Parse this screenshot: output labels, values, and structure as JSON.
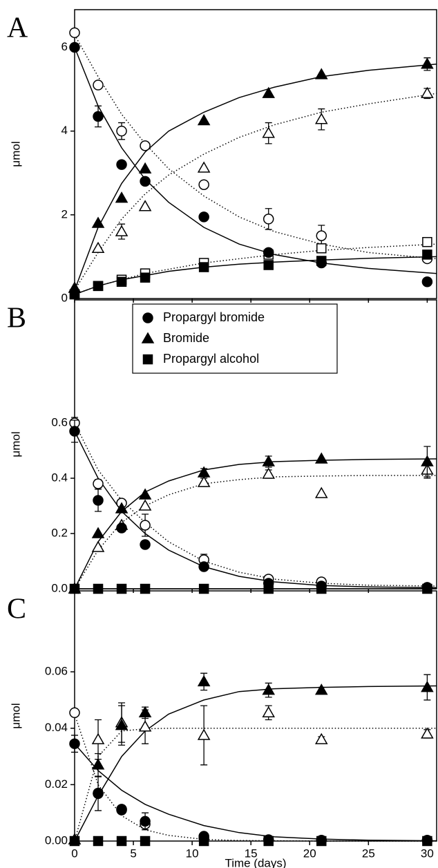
{
  "chart_data": [
    {
      "type": "scatter",
      "panel_label": "A",
      "ylabel": "μmol",
      "x": [
        0,
        2,
        4,
        6,
        11,
        16.5,
        21,
        30
      ],
      "xlim": [
        0,
        30.8
      ],
      "xticks": [
        0,
        5,
        10,
        15,
        20,
        25,
        30
      ],
      "ylim": [
        0,
        6.9
      ],
      "yticks": [
        0,
        2,
        4,
        6
      ],
      "series": [
        {
          "marker": "circle",
          "fill": "filled",
          "color": "#000000",
          "values": [
            6.0,
            4.35,
            3.2,
            2.8,
            1.95,
            1.1,
            0.85,
            0.4
          ],
          "errors": [
            null,
            0.25,
            null,
            null,
            null,
            null,
            null,
            null
          ]
        },
        {
          "marker": "triangle",
          "fill": "filled",
          "color": "#000000",
          "values": [
            0.25,
            1.8,
            2.4,
            3.1,
            4.25,
            4.9,
            5.35,
            5.6
          ],
          "errors": [
            null,
            null,
            null,
            null,
            null,
            null,
            null,
            0.15
          ]
        },
        {
          "marker": "square",
          "fill": "filled",
          "color": "#000000",
          "values": [
            0.1,
            0.3,
            0.4,
            0.5,
            0.75,
            0.8,
            0.9,
            1.05
          ],
          "errors": [
            null,
            null,
            null,
            null,
            null,
            null,
            null,
            null
          ]
        },
        {
          "marker": "circle",
          "fill": "open",
          "color": "#000000",
          "values": [
            6.35,
            5.1,
            4.0,
            3.65,
            2.72,
            1.9,
            1.5,
            0.95
          ],
          "errors": [
            null,
            null,
            0.2,
            null,
            null,
            0.25,
            0.25,
            null
          ]
        },
        {
          "marker": "triangle",
          "fill": "open",
          "color": "#000000",
          "values": [
            0.25,
            1.2,
            1.6,
            2.2,
            3.12,
            3.95,
            4.28,
            4.9
          ],
          "errors": [
            null,
            null,
            0.18,
            null,
            null,
            0.25,
            0.25,
            0.12
          ]
        },
        {
          "marker": "square",
          "fill": "open",
          "color": "#000000",
          "values": [
            0.1,
            0.3,
            0.45,
            0.6,
            0.85,
            1.05,
            1.2,
            1.35
          ],
          "errors": [
            null,
            null,
            null,
            null,
            null,
            null,
            null,
            null
          ]
        }
      ],
      "fit_x": [
        0,
        2,
        4,
        6,
        8,
        11,
        14,
        17,
        21,
        25,
        30.8
      ],
      "fits": [
        {
          "dash": "solid",
          "values": [
            6.0,
            4.6,
            3.6,
            2.85,
            2.3,
            1.7,
            1.3,
            1.05,
            0.85,
            0.72,
            0.6
          ]
        },
        {
          "dash": "solid",
          "values": [
            0.2,
            1.7,
            2.75,
            3.5,
            4.0,
            4.45,
            4.8,
            5.05,
            5.3,
            5.45,
            5.6
          ]
        },
        {
          "dash": "solid",
          "values": [
            0.1,
            0.3,
            0.45,
            0.55,
            0.65,
            0.75,
            0.82,
            0.87,
            0.92,
            0.96,
            1.0
          ]
        },
        {
          "dash": "dotted",
          "values": [
            6.3,
            5.3,
            4.4,
            3.7,
            3.1,
            2.45,
            1.95,
            1.6,
            1.3,
            1.1,
            0.95
          ]
        },
        {
          "dash": "dotted",
          "values": [
            0.2,
            1.1,
            1.9,
            2.5,
            2.95,
            3.45,
            3.85,
            4.15,
            4.45,
            4.65,
            4.9
          ]
        },
        {
          "dash": "dotted",
          "values": [
            0.1,
            0.3,
            0.45,
            0.6,
            0.7,
            0.85,
            0.95,
            1.05,
            1.15,
            1.22,
            1.3
          ]
        }
      ]
    },
    {
      "type": "scatter",
      "panel_label": "B",
      "ylabel": "μmol",
      "x": [
        0,
        2,
        4,
        6,
        11,
        16.5,
        21,
        30
      ],
      "xlim": [
        0,
        30.8
      ],
      "xticks": [
        0,
        5,
        10,
        15,
        20,
        25,
        30
      ],
      "ylim": [
        0,
        1.045
      ],
      "yticks": [
        {
          "value": 0,
          "label": "0.0"
        },
        0.2,
        0.4,
        0.6
      ],
      "legend": "upper center",
      "series": [
        {
          "name": "Propargyl bromide",
          "marker": "circle",
          "fill": "filled",
          "color": "#000000",
          "values": [
            0.57,
            0.32,
            0.22,
            0.16,
            0.08,
            0.02,
            0.01,
            0.005
          ],
          "errors": [
            0.04,
            0.04,
            null,
            null,
            null,
            null,
            null,
            null
          ]
        },
        {
          "name": "Bromide",
          "marker": "triangle",
          "fill": "filled",
          "color": "#000000",
          "values": [
            0.0,
            0.2,
            0.29,
            0.34,
            0.42,
            0.46,
            0.47,
            0.46
          ],
          "errors": [
            null,
            null,
            null,
            null,
            0.015,
            0.02,
            null,
            0.055
          ]
        },
        {
          "name": "Propargyl alcohol",
          "marker": "square",
          "fill": "filled",
          "color": "#000000",
          "values": [
            0,
            0,
            0,
            0,
            0,
            0,
            0,
            0
          ],
          "errors": [
            null,
            null,
            null,
            null,
            null,
            null,
            null,
            null
          ]
        },
        {
          "marker": "circle",
          "fill": "open",
          "color": "#000000",
          "values": [
            0.6,
            0.38,
            0.31,
            0.23,
            0.105,
            0.035,
            0.025,
            0.005
          ],
          "errors": [
            0.02,
            0.015,
            null,
            0.04,
            0.02,
            null,
            null,
            null
          ]
        },
        {
          "marker": "triangle",
          "fill": "open",
          "color": "#000000",
          "values": [
            0,
            0.15,
            0.23,
            0.3,
            0.385,
            0.415,
            0.345,
            0.43
          ],
          "errors": [
            null,
            null,
            null,
            null,
            0.015,
            0.015,
            null,
            0.03
          ]
        }
      ],
      "fit_x": [
        0,
        2,
        4,
        6,
        8,
        11,
        14,
        17,
        21,
        25,
        30.8
      ],
      "fits": [
        {
          "dash": "solid",
          "values": [
            0.57,
            0.4,
            0.28,
            0.2,
            0.14,
            0.08,
            0.045,
            0.025,
            0.012,
            0.007,
            0.004
          ]
        },
        {
          "dash": "solid",
          "values": [
            0,
            0.17,
            0.28,
            0.35,
            0.39,
            0.43,
            0.45,
            0.46,
            0.465,
            0.468,
            0.47
          ]
        },
        {
          "dash": "solid",
          "values": [
            0,
            0,
            0,
            0,
            0,
            0,
            0,
            0,
            0,
            0,
            0
          ]
        },
        {
          "dash": "dotted",
          "values": [
            0.6,
            0.43,
            0.32,
            0.24,
            0.17,
            0.1,
            0.06,
            0.035,
            0.02,
            0.013,
            0.01
          ]
        },
        {
          "dash": "dotted",
          "values": [
            0,
            0.14,
            0.24,
            0.3,
            0.34,
            0.38,
            0.395,
            0.405,
            0.408,
            0.41,
            0.41
          ]
        }
      ]
    },
    {
      "type": "scatter",
      "panel_label": "C",
      "ylabel": "μmol",
      "xlabel": "Time (days)",
      "x": [
        0,
        2,
        4,
        6,
        11,
        16.5,
        21,
        30
      ],
      "xlim": [
        0,
        30.8
      ],
      "xticks": [
        0,
        5,
        10,
        15,
        20,
        25,
        30
      ],
      "ylim": [
        0,
        0.0887
      ],
      "yticks": [
        {
          "value": 0,
          "label": "0.00"
        },
        0.02,
        0.04,
        0.06
      ],
      "series": [
        {
          "marker": "circle",
          "fill": "filled",
          "color": "#000000",
          "values": [
            0.0345,
            0.0168,
            0.0113,
            0.007,
            0.0017,
            0.0005,
            0.0003,
            0.0003
          ],
          "errors": [
            0.003,
            0.006,
            null,
            0.003,
            null,
            null,
            null,
            null
          ]
        },
        {
          "marker": "triangle",
          "fill": "filled",
          "color": "#000000",
          "values": [
            0.0005,
            0.027,
            0.041,
            0.0455,
            0.0565,
            0.0535,
            0.0535,
            0.0545
          ],
          "errors": [
            null,
            0.004,
            0.007,
            0.002,
            0.003,
            0.0025,
            0.001,
            0.0045
          ]
        },
        {
          "marker": "square",
          "fill": "filled",
          "color": "#000000",
          "values": [
            0,
            0,
            0,
            0,
            0,
            0,
            0,
            0
          ],
          "errors": [
            null,
            null,
            null,
            null,
            null,
            null,
            null,
            null
          ]
        },
        {
          "marker": "circle",
          "fill": "open",
          "color": "#000000",
          "values": [
            0.0455,
            0.017,
            0.011,
            0.006,
            0.001,
            0.0003,
            0.0002,
            0.0002
          ],
          "errors": [
            null,
            null,
            null,
            null,
            null,
            null,
            null,
            null
          ]
        },
        {
          "marker": "triangle",
          "fill": "open",
          "color": "#000000",
          "values": [
            0.0005,
            0.036,
            0.042,
            0.0405,
            0.0375,
            0.0455,
            0.036,
            0.038
          ],
          "errors": [
            null,
            0.007,
            0.007,
            0.006,
            0.0105,
            0.0025,
            0.001,
            0.0015
          ]
        }
      ],
      "fit_x": [
        0,
        2,
        4,
        6,
        8,
        11,
        14,
        17,
        21,
        25,
        30.8
      ],
      "fits": [
        {
          "dash": "solid",
          "values": [
            0.0345,
            0.025,
            0.018,
            0.013,
            0.0095,
            0.0055,
            0.003,
            0.0015,
            0.0007,
            0.0003,
            0.0001
          ]
        },
        {
          "dash": "solid",
          "values": [
            0,
            0.016,
            0.03,
            0.039,
            0.045,
            0.05,
            0.053,
            0.054,
            0.0545,
            0.0548,
            0.055
          ]
        },
        {
          "dash": "dotted",
          "values": [
            0.045,
            0.02,
            0.009,
            0.004,
            0.002,
            0.0006,
            0.0002,
            0.0001,
            0,
            0,
            0
          ]
        },
        {
          "dash": "dotted",
          "values": [
            0,
            0.03,
            0.039,
            0.0398,
            0.04,
            0.04,
            0.04,
            0.04,
            0.04,
            0.04,
            0.04
          ]
        }
      ]
    }
  ]
}
